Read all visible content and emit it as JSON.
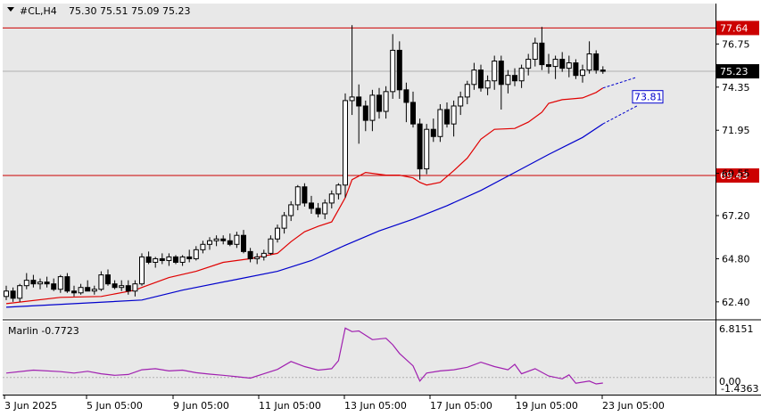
{
  "header": {
    "symbol": "#CL,H4",
    "ohlc": "75.30 75.51 75.09 75.23"
  },
  "oscillator": {
    "label": "Marlin -0.7723",
    "max_label": "6.8151",
    "zero_label": "0.00",
    "min_label": "-1.4363"
  },
  "colors": {
    "background": "#e8e8e8",
    "bull": "#ffffff",
    "bear": "#000000",
    "ma_fast": "#e00000",
    "ma_slow": "#0000cc",
    "level": "#cc0000",
    "osc": "#a020b0"
  },
  "chart_data": {
    "type": "candlestick",
    "ylim": [
      61.5,
      79.0
    ],
    "y_ticks": [
      "76.75",
      "74.35",
      "71.95",
      "69.55",
      "67.20",
      "64.80",
      "62.40"
    ],
    "x_ticks": [
      "3 Jun 2025",
      "5 Jun 05:00",
      "9 Jun 05:00",
      "11 Jun 05:00",
      "13 Jun 05:00",
      "17 Jun 05:00",
      "19 Jun 05:00",
      "23 Jun 05:00"
    ],
    "levels": [
      {
        "value": 77.64,
        "label": "77.64"
      },
      {
        "value": 69.43,
        "label": "69.43"
      }
    ],
    "current": {
      "value": 75.23,
      "label": "75.23"
    },
    "projection": {
      "value": 73.81,
      "label": "73.81"
    },
    "candles": [
      [
        62.7,
        63.3,
        62.5,
        63.0
      ],
      [
        63.0,
        63.2,
        62.4,
        62.6
      ],
      [
        62.6,
        63.4,
        62.4,
        63.3
      ],
      [
        63.3,
        64.0,
        63.1,
        63.6
      ],
      [
        63.6,
        63.9,
        63.2,
        63.4
      ],
      [
        63.4,
        63.7,
        63.1,
        63.5
      ],
      [
        63.5,
        63.8,
        63.2,
        63.4
      ],
      [
        63.4,
        63.7,
        63.0,
        63.1
      ],
      [
        63.1,
        63.9,
        62.9,
        63.8
      ],
      [
        63.8,
        64.0,
        62.9,
        63.0
      ],
      [
        63.0,
        63.3,
        62.7,
        62.9
      ],
      [
        62.9,
        63.4,
        62.8,
        63.2
      ],
      [
        63.2,
        63.6,
        63.0,
        63.0
      ],
      [
        63.0,
        63.3,
        62.8,
        63.1
      ],
      [
        63.1,
        64.1,
        63.0,
        63.9
      ],
      [
        63.9,
        64.2,
        63.3,
        63.4
      ],
      [
        63.4,
        63.6,
        63.1,
        63.2
      ],
      [
        63.2,
        63.6,
        63.0,
        63.3
      ],
      [
        63.3,
        63.6,
        62.8,
        63.0
      ],
      [
        63.0,
        63.6,
        62.7,
        63.4
      ],
      [
        63.4,
        65.1,
        63.3,
        64.9
      ],
      [
        64.9,
        65.2,
        64.5,
        64.6
      ],
      [
        64.6,
        64.9,
        64.3,
        64.8
      ],
      [
        64.8,
        65.1,
        64.5,
        64.7
      ],
      [
        64.7,
        65.1,
        64.4,
        64.9
      ],
      [
        64.9,
        65.0,
        64.5,
        64.6
      ],
      [
        64.6,
        65.0,
        64.4,
        64.9
      ],
      [
        64.9,
        65.3,
        64.6,
        64.8
      ],
      [
        64.8,
        65.5,
        64.7,
        65.3
      ],
      [
        65.3,
        65.8,
        65.1,
        65.6
      ],
      [
        65.6,
        66.0,
        65.3,
        65.8
      ],
      [
        65.8,
        66.1,
        65.5,
        65.9
      ],
      [
        65.9,
        66.1,
        65.6,
        65.8
      ],
      [
        65.8,
        66.2,
        65.5,
        65.6
      ],
      [
        65.6,
        66.3,
        65.4,
        66.1
      ],
      [
        66.1,
        66.4,
        65.1,
        65.2
      ],
      [
        65.2,
        65.4,
        64.6,
        64.8
      ],
      [
        64.8,
        65.1,
        64.5,
        64.9
      ],
      [
        64.9,
        65.3,
        64.7,
        65.1
      ],
      [
        65.1,
        66.1,
        65.0,
        65.9
      ],
      [
        65.9,
        66.7,
        65.7,
        66.5
      ],
      [
        66.5,
        67.4,
        66.2,
        67.2
      ],
      [
        67.2,
        68.0,
        66.9,
        67.8
      ],
      [
        67.8,
        68.9,
        67.5,
        68.8
      ],
      [
        68.8,
        69.0,
        67.7,
        67.9
      ],
      [
        67.9,
        68.3,
        67.3,
        67.6
      ],
      [
        67.6,
        67.9,
        67.1,
        67.3
      ],
      [
        67.3,
        68.1,
        67.0,
        67.9
      ],
      [
        67.9,
        68.6,
        67.6,
        68.4
      ],
      [
        68.4,
        69.0,
        68.1,
        68.9
      ],
      [
        68.9,
        74.0,
        68.2,
        73.6
      ],
      [
        73.6,
        77.8,
        72.8,
        73.8
      ],
      [
        73.8,
        74.5,
        71.2,
        73.3
      ],
      [
        73.3,
        73.6,
        71.9,
        72.5
      ],
      [
        72.5,
        74.2,
        71.9,
        73.9
      ],
      [
        73.9,
        74.3,
        72.6,
        73.0
      ],
      [
        73.0,
        74.4,
        72.6,
        74.1
      ],
      [
        74.1,
        77.3,
        73.7,
        76.4
      ],
      [
        76.4,
        76.9,
        73.7,
        74.2
      ],
      [
        74.2,
        74.6,
        72.4,
        73.5
      ],
      [
        73.5,
        74.1,
        72.1,
        72.3
      ],
      [
        72.3,
        72.6,
        69.2,
        69.8
      ],
      [
        69.8,
        72.3,
        69.5,
        72.0
      ],
      [
        72.0,
        72.6,
        71.3,
        71.6
      ],
      [
        71.6,
        73.4,
        71.3,
        73.1
      ],
      [
        73.1,
        73.5,
        72.1,
        72.3
      ],
      [
        72.3,
        73.6,
        71.6,
        73.3
      ],
      [
        73.3,
        74.1,
        72.8,
        73.8
      ],
      [
        73.8,
        74.7,
        73.4,
        74.5
      ],
      [
        74.5,
        75.7,
        74.2,
        75.3
      ],
      [
        75.3,
        75.6,
        74.1,
        74.3
      ],
      [
        74.3,
        75.0,
        73.9,
        74.7
      ],
      [
        74.7,
        76.1,
        74.2,
        75.8
      ],
      [
        75.8,
        76.1,
        73.1,
        74.5
      ],
      [
        74.5,
        75.3,
        74.0,
        75.0
      ],
      [
        75.0,
        75.4,
        74.4,
        74.7
      ],
      [
        74.7,
        75.6,
        74.3,
        75.4
      ],
      [
        75.4,
        76.2,
        75.0,
        75.9
      ],
      [
        75.9,
        77.1,
        75.5,
        76.8
      ],
      [
        76.8,
        77.7,
        75.3,
        75.6
      ],
      [
        75.6,
        76.2,
        75.1,
        75.5
      ],
      [
        75.5,
        76.1,
        74.8,
        75.9
      ],
      [
        75.9,
        76.3,
        75.2,
        75.4
      ],
      [
        75.4,
        76.1,
        74.9,
        75.7
      ],
      [
        75.7,
        75.9,
        74.8,
        75.0
      ],
      [
        75.0,
        75.6,
        74.6,
        75.3
      ],
      [
        75.3,
        76.9,
        75.1,
        76.2
      ],
      [
        76.2,
        76.4,
        75.1,
        75.3
      ],
      [
        75.3,
        75.51,
        75.09,
        75.23
      ]
    ],
    "ma_fast": [
      [
        0,
        62.3
      ],
      [
        8,
        62.65
      ],
      [
        14,
        62.7
      ],
      [
        19,
        63.05
      ],
      [
        20,
        63.2
      ],
      [
        24,
        63.75
      ],
      [
        28,
        64.1
      ],
      [
        32,
        64.6
      ],
      [
        36,
        64.8
      ],
      [
        40,
        65.1
      ],
      [
        42,
        65.75
      ],
      [
        44,
        66.3
      ],
      [
        46,
        66.6
      ],
      [
        48,
        66.85
      ],
      [
        50,
        68.2
      ],
      [
        51,
        69.2
      ],
      [
        53,
        69.6
      ],
      [
        56,
        69.45
      ],
      [
        58,
        69.45
      ],
      [
        60,
        69.3
      ],
      [
        61,
        69.05
      ],
      [
        62,
        68.9
      ],
      [
        64,
        69.05
      ],
      [
        66,
        69.7
      ],
      [
        68,
        70.4
      ],
      [
        70,
        71.45
      ],
      [
        72,
        72.0
      ],
      [
        75,
        72.05
      ],
      [
        77,
        72.4
      ],
      [
        79,
        72.95
      ],
      [
        80,
        73.45
      ],
      [
        82,
        73.65
      ],
      [
        85,
        73.75
      ],
      [
        87,
        74.05
      ],
      [
        88,
        74.3
      ]
    ],
    "ma_slow": [
      [
        0,
        62.1
      ],
      [
        10,
        62.3
      ],
      [
        20,
        62.5
      ],
      [
        26,
        63.05
      ],
      [
        34,
        63.65
      ],
      [
        40,
        64.1
      ],
      [
        45,
        64.7
      ],
      [
        50,
        65.55
      ],
      [
        55,
        66.35
      ],
      [
        60,
        67.0
      ],
      [
        65,
        67.75
      ],
      [
        70,
        68.6
      ],
      [
        75,
        69.6
      ],
      [
        80,
        70.6
      ],
      [
        85,
        71.55
      ],
      [
        88,
        72.3
      ]
    ],
    "ma_slow_ext": [
      [
        88,
        72.3
      ],
      [
        93,
        73.3
      ]
    ],
    "ma_fast_ext": [
      [
        88,
        74.3
      ],
      [
        93,
        74.9
      ]
    ],
    "osc": {
      "ylim": [
        -2.0,
        7.2
      ],
      "values": [
        [
          0,
          0.6
        ],
        [
          4,
          1.0
        ],
        [
          8,
          0.8
        ],
        [
          10,
          0.6
        ],
        [
          12,
          0.85
        ],
        [
          14,
          0.5
        ],
        [
          16,
          0.3
        ],
        [
          18,
          0.4
        ],
        [
          20,
          1.05
        ],
        [
          22,
          1.2
        ],
        [
          24,
          0.9
        ],
        [
          26,
          1.0
        ],
        [
          28,
          0.65
        ],
        [
          30,
          0.45
        ],
        [
          32,
          0.3
        ],
        [
          34,
          0.1
        ],
        [
          36,
          -0.1
        ],
        [
          38,
          0.5
        ],
        [
          40,
          1.1
        ],
        [
          42,
          2.2
        ],
        [
          44,
          1.5
        ],
        [
          46,
          1.0
        ],
        [
          48,
          1.2
        ],
        [
          49,
          2.3
        ],
        [
          50,
          6.8
        ],
        [
          51,
          6.3
        ],
        [
          52,
          6.4
        ],
        [
          53,
          5.8
        ],
        [
          54,
          5.2
        ],
        [
          56,
          5.4
        ],
        [
          57,
          4.5
        ],
        [
          58,
          3.3
        ],
        [
          60,
          1.6
        ],
        [
          61,
          -0.5
        ],
        [
          62,
          0.6
        ],
        [
          64,
          0.9
        ],
        [
          66,
          1.05
        ],
        [
          68,
          1.4
        ],
        [
          70,
          2.1
        ],
        [
          72,
          1.5
        ],
        [
          74,
          1.05
        ],
        [
          75,
          1.8
        ],
        [
          76,
          0.5
        ],
        [
          78,
          1.2
        ],
        [
          80,
          0.2
        ],
        [
          82,
          -0.2
        ],
        [
          83,
          0.35
        ],
        [
          84,
          -0.8
        ],
        [
          86,
          -0.5
        ],
        [
          87,
          -0.9
        ],
        [
          88,
          -0.77
        ]
      ]
    }
  }
}
